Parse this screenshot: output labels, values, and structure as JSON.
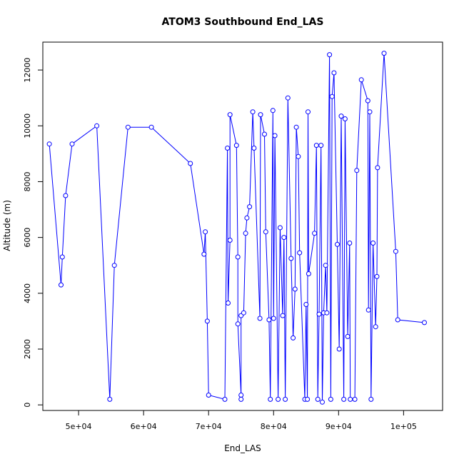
{
  "chart_data": {
    "type": "line",
    "title": "ATOM3 Southbound End_LAS",
    "xlabel": "End_LAS",
    "ylabel": "Altitude (m)",
    "xlim": [
      44500,
      106000
    ],
    "ylim": [
      -200,
      13000
    ],
    "x_ticks": [
      50000,
      60000,
      70000,
      80000,
      90000,
      100000
    ],
    "x_tick_labels": [
      "5e+04",
      "6e+04",
      "7e+04",
      "8e+04",
      "9e+04",
      "1e+05"
    ],
    "y_ticks": [
      0,
      2000,
      4000,
      6000,
      8000,
      10000,
      12000
    ],
    "y_tick_labels": [
      "0",
      "2000",
      "4000",
      "6000",
      "8000",
      "10000",
      "12000"
    ],
    "grid": false,
    "legend": "none",
    "color": "#0000ff",
    "markers": "open-circle",
    "series": [
      {
        "points": [
          [
            45500,
            9350
          ],
          [
            47300,
            4300
          ],
          [
            47500,
            5300
          ],
          [
            48000,
            7500
          ],
          [
            49000,
            9350
          ],
          [
            52800,
            10000
          ],
          [
            54800,
            200
          ],
          [
            55500,
            5000
          ],
          [
            57600,
            9950
          ],
          [
            61200,
            9950
          ],
          [
            67200,
            8650
          ],
          [
            69300,
            5400
          ],
          [
            69500,
            6200
          ],
          [
            69800,
            3000
          ],
          [
            70000,
            350
          ],
          [
            72500,
            200
          ],
          [
            72900,
            9200
          ],
          [
            73000,
            3650
          ],
          [
            73300,
            5900
          ],
          [
            73300,
            10400
          ],
          [
            74300,
            9300
          ],
          [
            74500,
            5300
          ],
          [
            74500,
            2900
          ],
          [
            75000,
            350
          ],
          [
            75000,
            200
          ],
          [
            75000,
            3200
          ],
          [
            75400,
            3300
          ],
          [
            75700,
            6150
          ],
          [
            75900,
            6700
          ],
          [
            76300,
            7100
          ],
          [
            76800,
            10500
          ],
          [
            77000,
            9200
          ],
          [
            77900,
            3100
          ],
          [
            78000,
            10400
          ],
          [
            78600,
            9700
          ],
          [
            78800,
            6200
          ],
          [
            79300,
            3050
          ],
          [
            79500,
            200
          ],
          [
            79900,
            10550
          ],
          [
            80000,
            3100
          ],
          [
            80200,
            9650
          ],
          [
            80700,
            200
          ],
          [
            81000,
            6350
          ],
          [
            81400,
            3200
          ],
          [
            81600,
            6000
          ],
          [
            81800,
            200
          ],
          [
            82200,
            11000
          ],
          [
            82700,
            5250
          ],
          [
            83000,
            2400
          ],
          [
            83300,
            4150
          ],
          [
            83500,
            9950
          ],
          [
            83800,
            8900
          ],
          [
            84000,
            5450
          ],
          [
            84800,
            200
          ],
          [
            85000,
            3600
          ],
          [
            85200,
            200
          ],
          [
            85300,
            10500
          ],
          [
            85400,
            4700
          ],
          [
            86300,
            6150
          ],
          [
            86600,
            9300
          ],
          [
            86800,
            200
          ],
          [
            87000,
            3250
          ],
          [
            87300,
            9300
          ],
          [
            87500,
            100
          ],
          [
            87700,
            3300
          ],
          [
            88000,
            5000
          ],
          [
            88200,
            3300
          ],
          [
            88600,
            12550
          ],
          [
            88800,
            200
          ],
          [
            89000,
            11050
          ],
          [
            89300,
            11900
          ],
          [
            89800,
            5750
          ],
          [
            90100,
            2000
          ],
          [
            90400,
            10350
          ],
          [
            90800,
            200
          ],
          [
            91000,
            10250
          ],
          [
            91400,
            2450
          ],
          [
            91700,
            5800
          ],
          [
            91800,
            200
          ],
          [
            92500,
            200
          ],
          [
            92800,
            8400
          ],
          [
            93500,
            11650
          ],
          [
            94500,
            10900
          ],
          [
            94600,
            3400
          ],
          [
            94800,
            10500
          ],
          [
            95000,
            200
          ],
          [
            95300,
            5800
          ],
          [
            95700,
            2800
          ],
          [
            95900,
            4600
          ],
          [
            96000,
            8500
          ],
          [
            97000,
            12600
          ],
          [
            98800,
            5500
          ],
          [
            99100,
            3050
          ],
          [
            103200,
            2950
          ]
        ]
      }
    ]
  }
}
